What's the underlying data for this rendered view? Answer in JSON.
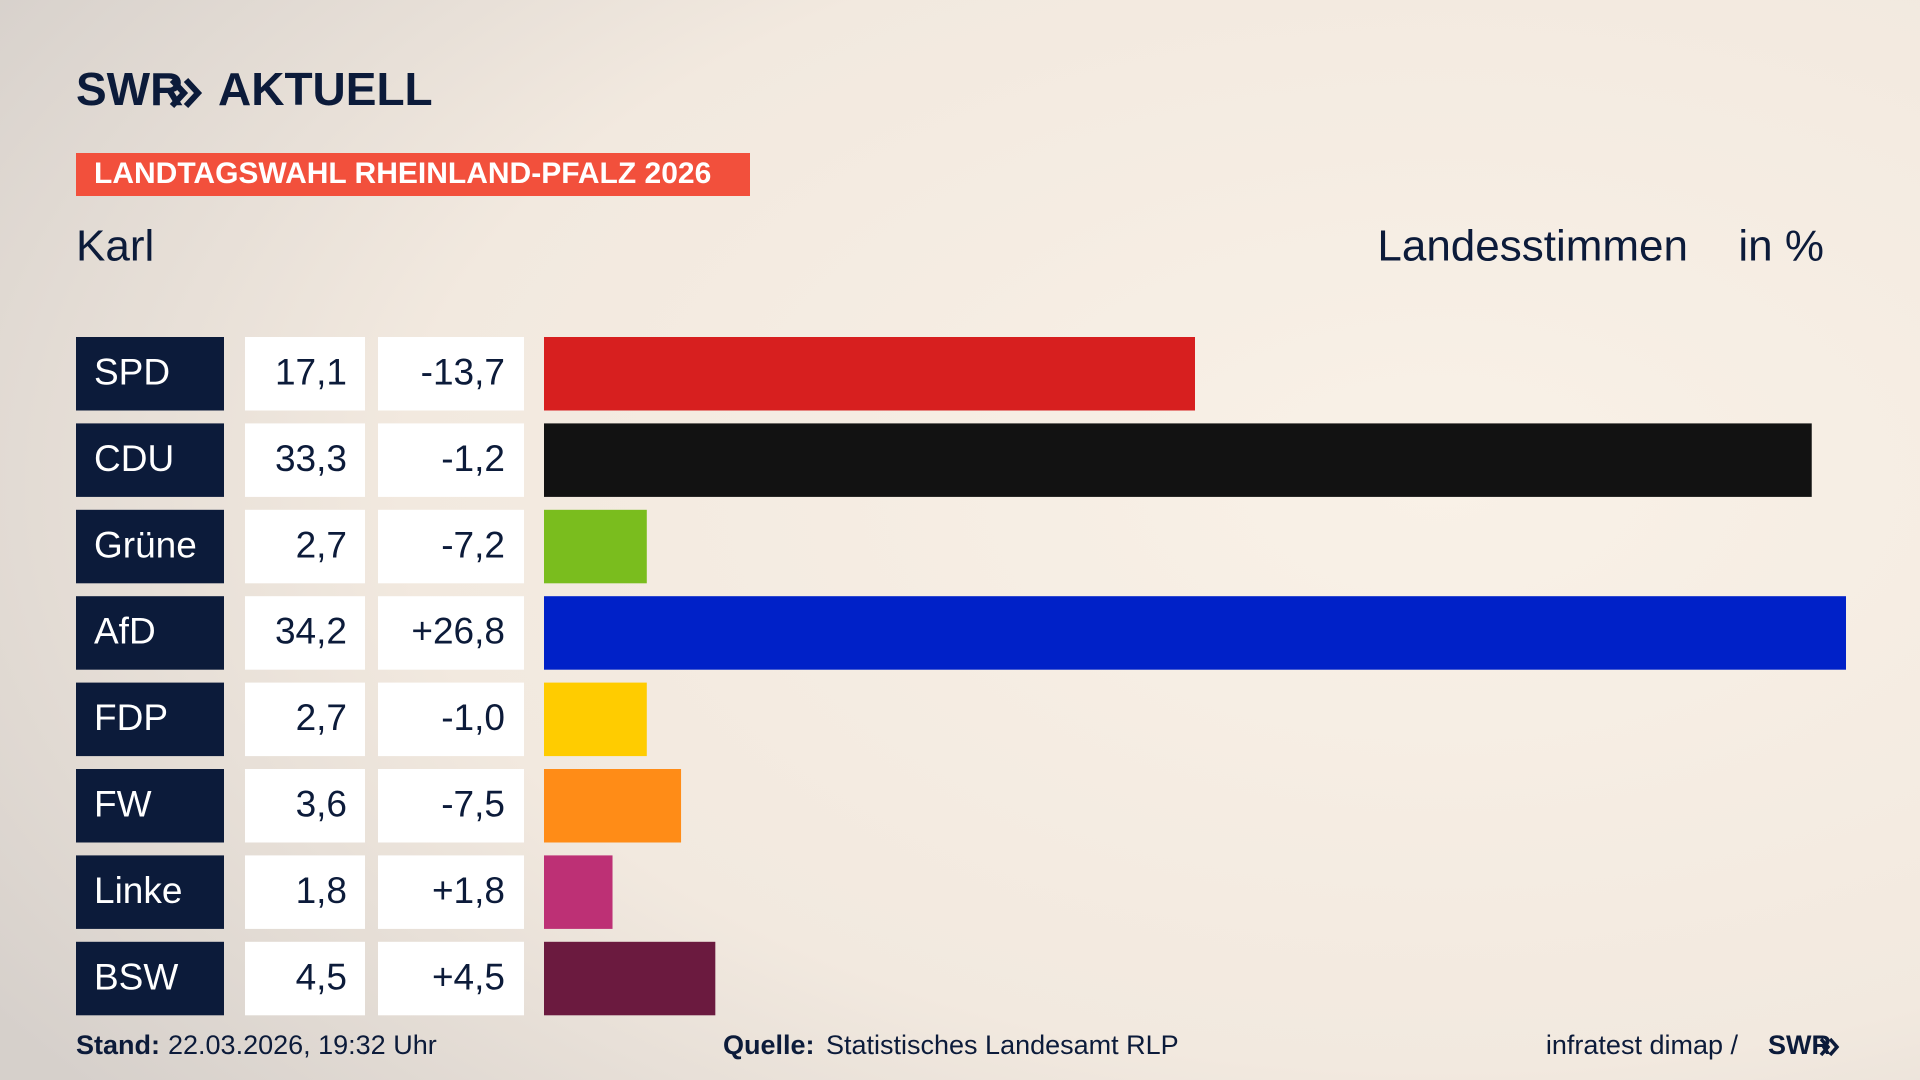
{
  "chart_data": {
    "type": "bar",
    "brand": "SWR",
    "brand_section": "AKTUELL",
    "title": "LANDTAGSWAHL RHEINLAND-PFALZ 2026",
    "subtitle": "Karl",
    "measure_label": "Landesstimmen",
    "unit_label": "in %",
    "categories": [
      "SPD",
      "CDU",
      "Grüne",
      "AfD",
      "FDP",
      "FW",
      "Linke",
      "BSW"
    ],
    "values": [
      17.1,
      33.3,
      2.7,
      34.2,
      2.7,
      3.6,
      1.8,
      4.5
    ],
    "value_labels": [
      "17,1",
      "33,3",
      "2,7",
      "34,2",
      "2,7",
      "3,6",
      "1,8",
      "4,5"
    ],
    "changes": [
      "-13,7",
      "-1,2",
      "-7,2",
      "+26,8",
      "-1,0",
      "-7,5",
      "+1,8",
      "+4,5"
    ],
    "colors": [
      "#d71f1f",
      "#121212",
      "#7abd1e",
      "#0021c8",
      "#ffcc00",
      "#ff8c17",
      "#bd3075",
      "#6b1a3f"
    ],
    "footer": {
      "date_label": "Stand:",
      "date": "22.03.2026, 19:32 Uhr",
      "source_label": "Quelle:",
      "source": "Statistisches Landesamt RLP",
      "credit": "infratest dimap /",
      "credit_brand": "SWR"
    }
  }
}
